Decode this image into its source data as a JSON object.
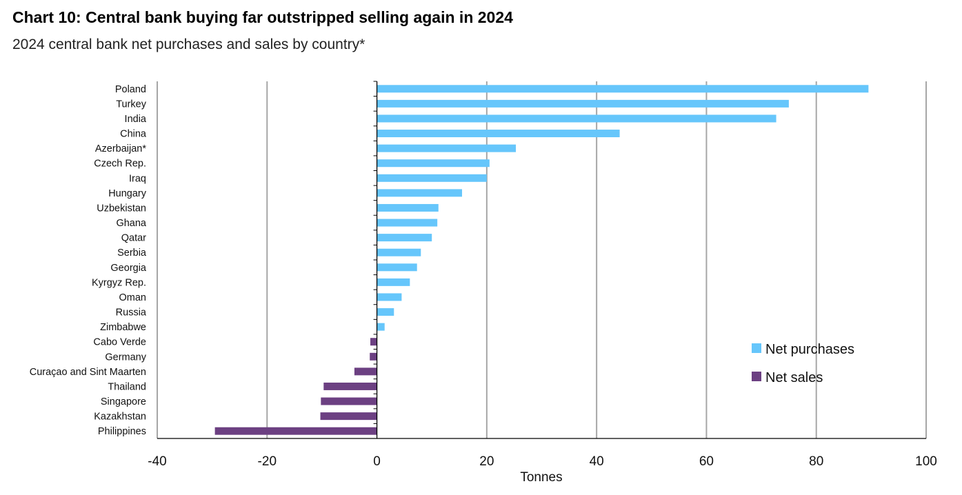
{
  "title": "Chart 10: Central bank buying far outstripped selling again in 2024",
  "subtitle": "2024 central bank net purchases and sales by country*",
  "colors": {
    "net_purchases": "#66c6fb",
    "net_sales": "#6c4082",
    "grid": "#a6a6a6",
    "axis": "#000000"
  },
  "chart_data": {
    "type": "bar",
    "orientation": "horizontal",
    "title": "Chart 10: Central bank buying far outstripped selling again in 2024",
    "subtitle": "2024 central bank net purchases and sales by country*",
    "xlabel": "Tonnes",
    "ylabel": "",
    "xlim": [
      -40,
      100
    ],
    "xticks": [
      -40,
      -20,
      0,
      20,
      40,
      60,
      80,
      100
    ],
    "grid": "vertical",
    "legend_position": "bottom-right",
    "legend": [
      "Net purchases",
      "Net sales"
    ],
    "categories": [
      "Poland",
      "Turkey",
      "India",
      "China",
      "Azerbaijan*",
      "Czech Rep.",
      "Iraq",
      "Hungary",
      "Uzbekistan",
      "Ghana",
      "Qatar",
      "Serbia",
      "Georgia",
      "Kyrgyz Rep.",
      "Oman",
      "Russia",
      "Zimbabwe",
      "Cabo Verde",
      "Germany",
      "Curaçao and Sint Maarten",
      "Thailand",
      "Singapore",
      "Kazakhstan",
      "Philippines"
    ],
    "values": [
      89.5,
      75.0,
      72.7,
      44.2,
      25.3,
      20.5,
      20.0,
      15.5,
      11.2,
      11.0,
      10.0,
      8.0,
      7.3,
      6.0,
      4.5,
      3.1,
      1.4,
      -1.2,
      -1.3,
      -4.1,
      -9.7,
      -10.2,
      -10.3,
      -29.5
    ]
  }
}
